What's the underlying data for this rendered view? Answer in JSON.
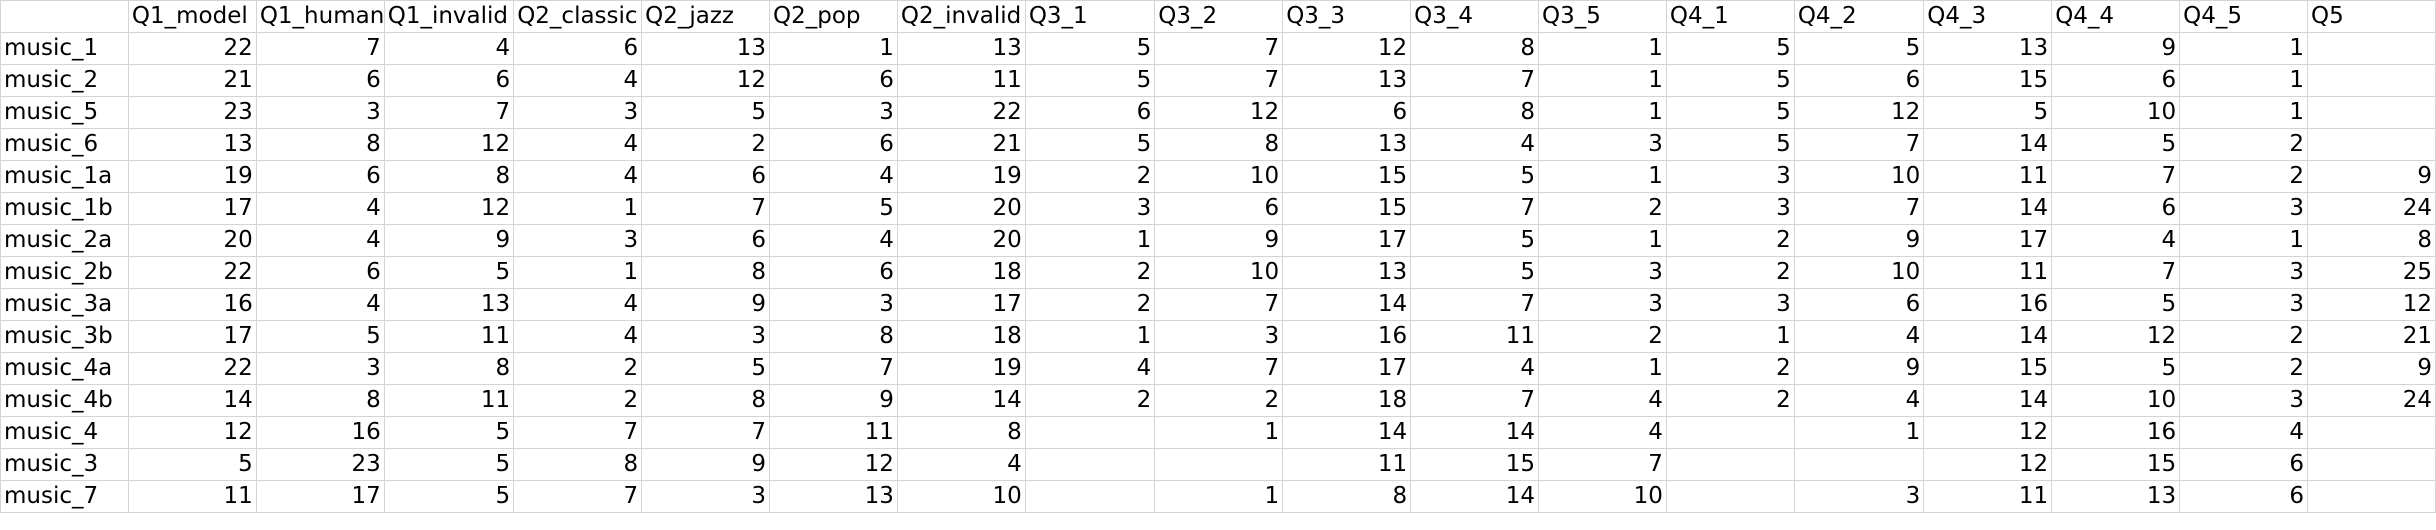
{
  "sheet": {
    "header": [
      "",
      "Q1_model",
      "Q1_human",
      "Q1_invalid",
      "Q2_classic",
      "Q2_jazz",
      "Q2_pop",
      "Q2_invalid",
      "Q3_1",
      "Q3_2",
      "Q3_3",
      "Q3_4",
      "Q3_5",
      "Q4_1",
      "Q4_2",
      "Q4_3",
      "Q4_4",
      "Q4_5",
      "Q5"
    ],
    "rows": [
      [
        "music_1",
        "22",
        "7",
        "4",
        "6",
        "13",
        "1",
        "13",
        "5",
        "7",
        "12",
        "8",
        "1",
        "5",
        "5",
        "13",
        "9",
        "1",
        ""
      ],
      [
        "music_2",
        "21",
        "6",
        "6",
        "4",
        "12",
        "6",
        "11",
        "5",
        "7",
        "13",
        "7",
        "1",
        "5",
        "6",
        "15",
        "6",
        "1",
        ""
      ],
      [
        "music_5",
        "23",
        "3",
        "7",
        "3",
        "5",
        "3",
        "22",
        "6",
        "12",
        "6",
        "8",
        "1",
        "5",
        "12",
        "5",
        "10",
        "1",
        ""
      ],
      [
        "music_6",
        "13",
        "8",
        "12",
        "4",
        "2",
        "6",
        "21",
        "5",
        "8",
        "13",
        "4",
        "3",
        "5",
        "7",
        "14",
        "5",
        "2",
        ""
      ],
      [
        "music_1a",
        "19",
        "6",
        "8",
        "4",
        "6",
        "4",
        "19",
        "2",
        "10",
        "15",
        "5",
        "1",
        "3",
        "10",
        "11",
        "7",
        "2",
        "9"
      ],
      [
        "music_1b",
        "17",
        "4",
        "12",
        "1",
        "7",
        "5",
        "20",
        "3",
        "6",
        "15",
        "7",
        "2",
        "3",
        "7",
        "14",
        "6",
        "3",
        "24"
      ],
      [
        "music_2a",
        "20",
        "4",
        "9",
        "3",
        "6",
        "4",
        "20",
        "1",
        "9",
        "17",
        "5",
        "1",
        "2",
        "9",
        "17",
        "4",
        "1",
        "8"
      ],
      [
        "music_2b",
        "22",
        "6",
        "5",
        "1",
        "8",
        "6",
        "18",
        "2",
        "10",
        "13",
        "5",
        "3",
        "2",
        "10",
        "11",
        "7",
        "3",
        "25"
      ],
      [
        "music_3a",
        "16",
        "4",
        "13",
        "4",
        "9",
        "3",
        "17",
        "2",
        "7",
        "14",
        "7",
        "3",
        "3",
        "6",
        "16",
        "5",
        "3",
        "12"
      ],
      [
        "music_3b",
        "17",
        "5",
        "11",
        "4",
        "3",
        "8",
        "18",
        "1",
        "3",
        "16",
        "11",
        "2",
        "1",
        "4",
        "14",
        "12",
        "2",
        "21"
      ],
      [
        "music_4a",
        "22",
        "3",
        "8",
        "2",
        "5",
        "7",
        "19",
        "4",
        "7",
        "17",
        "4",
        "1",
        "2",
        "9",
        "15",
        "5",
        "2",
        "9"
      ],
      [
        "music_4b",
        "14",
        "8",
        "11",
        "2",
        "8",
        "9",
        "14",
        "2",
        "2",
        "18",
        "7",
        "4",
        "2",
        "4",
        "14",
        "10",
        "3",
        "24"
      ],
      [
        "music_4",
        "12",
        "16",
        "5",
        "7",
        "7",
        "11",
        "8",
        "",
        "1",
        "14",
        "14",
        "4",
        "",
        "1",
        "12",
        "16",
        "4",
        ""
      ],
      [
        "music_3",
        "5",
        "23",
        "5",
        "8",
        "9",
        "12",
        "4",
        "",
        "",
        "11",
        "15",
        "7",
        "",
        "",
        "12",
        "15",
        "6",
        ""
      ],
      [
        "music_7",
        "11",
        "17",
        "5",
        "7",
        "3",
        "13",
        "10",
        "",
        "1",
        "8",
        "14",
        "10",
        "",
        "3",
        "11",
        "13",
        "6",
        ""
      ]
    ]
  }
}
